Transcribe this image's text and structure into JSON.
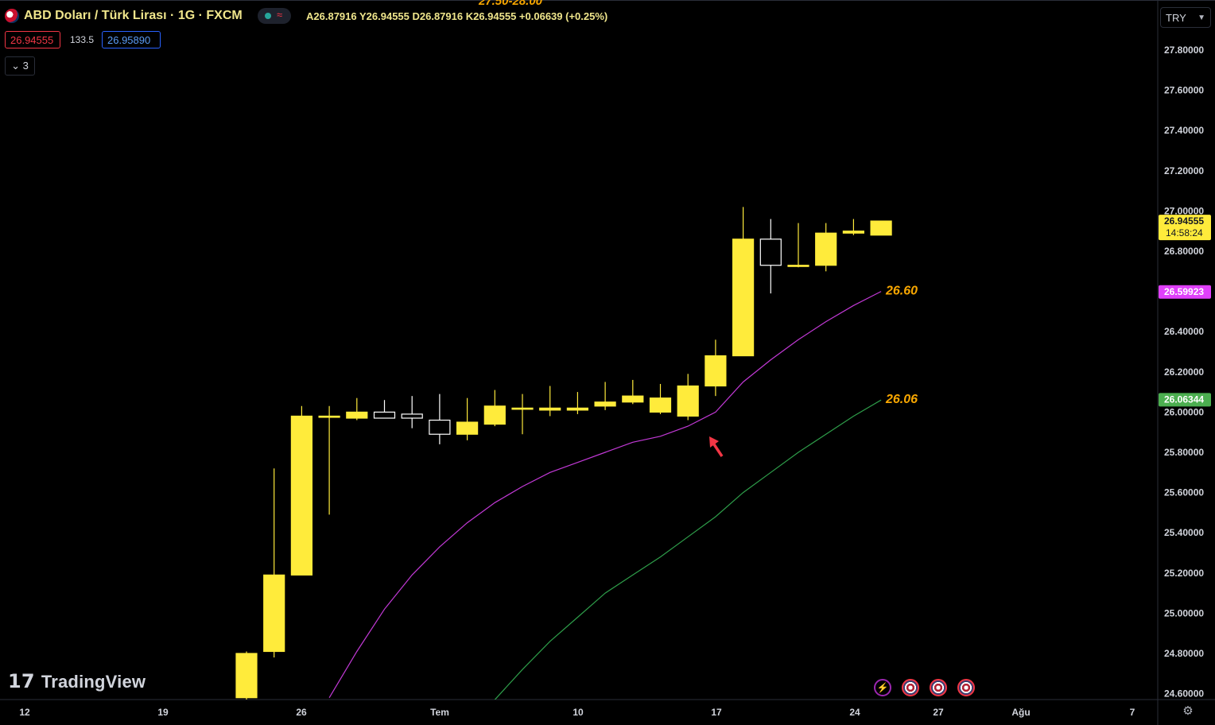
{
  "header": {
    "title": "ABD Doları / Türk Lirası · 1G · FXCM",
    "ohlc": "A26.87916  Y26.94555  D26.87916  K26.94555  +0.06639 (+0.25%)",
    "top_partial_label": "27.50-28.00",
    "bid": "26.94555",
    "spread": "133.5",
    "ask": "26.95890",
    "indicators_count": "3",
    "currency": "TRY"
  },
  "brand": {
    "logo_text": "TradingView"
  },
  "chart_data": {
    "type": "candlestick",
    "title": "ABD Doları / Türk Lirası · 1G · FXCM",
    "y_ticks": [
      27.8,
      27.6,
      27.4,
      27.2,
      27.0,
      26.8,
      26.4,
      26.2,
      26.0,
      25.8,
      25.6,
      25.4,
      25.2,
      25.0,
      24.8,
      24.6
    ],
    "ylim": [
      24.57,
      28.02
    ],
    "x_ticks": [
      "12",
      "19",
      "26",
      "Tem",
      "10",
      "17",
      "24",
      "27",
      "Ağu",
      "7"
    ],
    "candles": [
      {
        "o": 24.58,
        "h": 24.81,
        "l": 24.55,
        "c": 24.8
      },
      {
        "o": 24.81,
        "h": 25.72,
        "l": 24.78,
        "c": 25.19
      },
      {
        "o": 25.19,
        "h": 26.03,
        "l": 25.19,
        "c": 25.98
      },
      {
        "o": 25.98,
        "h": 26.03,
        "l": 25.49,
        "c": 25.98
      },
      {
        "o": 25.97,
        "h": 26.07,
        "l": 25.96,
        "c": 26.0
      },
      {
        "o": 26.0,
        "h": 26.06,
        "l": 25.97,
        "c": 25.97
      },
      {
        "o": 25.99,
        "h": 26.08,
        "l": 25.92,
        "c": 25.97
      },
      {
        "o": 25.96,
        "h": 26.09,
        "l": 25.84,
        "c": 25.89
      },
      {
        "o": 25.89,
        "h": 26.07,
        "l": 25.86,
        "c": 25.95
      },
      {
        "o": 25.94,
        "h": 26.11,
        "l": 25.93,
        "c": 26.03
      },
      {
        "o": 26.02,
        "h": 26.09,
        "l": 25.89,
        "c": 26.02
      },
      {
        "o": 26.01,
        "h": 26.13,
        "l": 25.98,
        "c": 26.02
      },
      {
        "o": 26.01,
        "h": 26.1,
        "l": 25.99,
        "c": 26.02
      },
      {
        "o": 26.03,
        "h": 26.15,
        "l": 26.01,
        "c": 26.05
      },
      {
        "o": 26.05,
        "h": 26.16,
        "l": 26.04,
        "c": 26.08
      },
      {
        "o": 26.0,
        "h": 26.14,
        "l": 25.99,
        "c": 26.07
      },
      {
        "o": 25.98,
        "h": 26.19,
        "l": 25.96,
        "c": 26.13
      },
      {
        "o": 26.13,
        "h": 26.36,
        "l": 26.08,
        "c": 26.28
      },
      {
        "o": 26.28,
        "h": 27.02,
        "l": 26.28,
        "c": 26.86
      },
      {
        "o": 26.86,
        "h": 26.96,
        "l": 26.59,
        "c": 26.73
      },
      {
        "o": 26.73,
        "h": 26.94,
        "l": 26.72,
        "c": 26.73
      },
      {
        "o": 26.73,
        "h": 26.94,
        "l": 26.7,
        "c": 26.89
      },
      {
        "o": 26.89,
        "h": 26.96,
        "l": 26.88,
        "c": 26.9
      },
      {
        "o": 26.88,
        "h": 26.95,
        "l": 26.88,
        "c": 26.95
      }
    ],
    "series": [
      {
        "color": "#c239d6",
        "values": [
          null,
          null,
          null,
          24.58,
          24.81,
          25.02,
          25.19,
          25.33,
          25.45,
          25.55,
          25.63,
          25.7,
          25.75,
          25.8,
          25.85,
          25.88,
          25.93,
          26.0,
          26.15,
          26.26,
          26.36,
          26.45,
          26.53,
          26.6
        ]
      },
      {
        "color": "#2e9e4a",
        "values": [
          null,
          null,
          null,
          null,
          null,
          null,
          null,
          null,
          null,
          24.57,
          24.72,
          24.86,
          24.98,
          25.1,
          25.19,
          25.28,
          25.38,
          25.48,
          25.6,
          25.7,
          25.8,
          25.89,
          25.98,
          26.06
        ]
      }
    ],
    "line_labels": [
      "26.60",
      "26.06"
    ],
    "price_tags": [
      {
        "value": "26.94555",
        "time": "14:58:24",
        "color": "#ffeb3b"
      },
      {
        "value": "26.59923",
        "color": "#e040fb"
      },
      {
        "value": "26.06344",
        "color": "#4caf50"
      }
    ],
    "annotation": "red-arrow-up-left",
    "grid": false,
    "legend": "none"
  }
}
